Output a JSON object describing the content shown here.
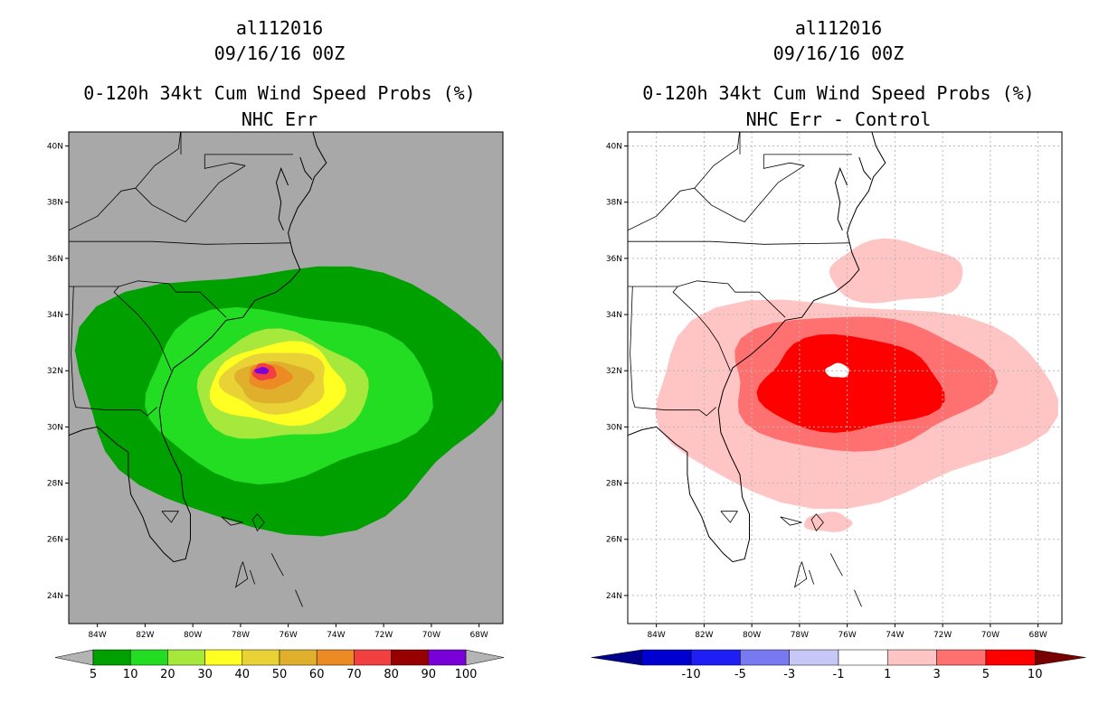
{
  "chart_data": [
    {
      "type": "heatmap",
      "storm_id": "al112016",
      "datetime": "09/16/16 00Z",
      "title": "0-120h 34kt Cum Wind Speed Probs (%)",
      "subtitle": "NHC Err",
      "background": "#a8a8a8",
      "lat_ticks": [
        "40N",
        "38N",
        "36N",
        "34N",
        "32N",
        "30N",
        "28N",
        "26N",
        "24N"
      ],
      "lon_ticks": [
        "84W",
        "82W",
        "80W",
        "78W",
        "76W",
        "74W",
        "72W",
        "70W",
        "68W"
      ],
      "grid": false,
      "colorbar": {
        "labels": [
          "5",
          "10",
          "20",
          "30",
          "40",
          "50",
          "60",
          "70",
          "80",
          "90",
          "100"
        ],
        "colors": [
          "#00a000",
          "#22dd22",
          "#a6e83c",
          "#ffff22",
          "#e8d236",
          "#e0b02c",
          "#ec8a24",
          "#f24040",
          "#960000",
          "#7a00d8"
        ],
        "end_color": "#b4b4b4"
      },
      "contours": [
        {
          "level": 5,
          "color": "#00a000",
          "center": [
            -76.1,
            31.2
          ],
          "rx_deg": 8.8,
          "ry_deg": 4.7
        },
        {
          "level": 10,
          "color": "#22dd22",
          "center": [
            -76.2,
            31.2
          ],
          "rx_deg": 6.0,
          "ry_deg": 3.0
        },
        {
          "level": 20,
          "color": "#a6e83c",
          "center": [
            -76.3,
            31.4
          ],
          "rx_deg": 3.6,
          "ry_deg": 1.9
        },
        {
          "level": 30,
          "color": "#ffff22",
          "center": [
            -76.4,
            31.5
          ],
          "rx_deg": 2.8,
          "ry_deg": 1.45
        },
        {
          "level": 40,
          "color": "#e8d236",
          "center": [
            -76.5,
            31.6
          ],
          "rx_deg": 2.2,
          "ry_deg": 1.1
        },
        {
          "level": 50,
          "color": "#e0b02c",
          "center": [
            -76.6,
            31.6
          ],
          "rx_deg": 1.6,
          "ry_deg": 0.75
        },
        {
          "level": 60,
          "color": "#ec8a24",
          "center": [
            -76.8,
            31.8
          ],
          "rx_deg": 0.9,
          "ry_deg": 0.45
        },
        {
          "level": 70,
          "color": "#f24040",
          "center": [
            -77.0,
            31.95
          ],
          "rx_deg": 0.5,
          "ry_deg": 0.3
        },
        {
          "level": 90,
          "color": "#7a00d8",
          "center": [
            -77.1,
            32.0
          ],
          "rx_deg": 0.3,
          "ry_deg": 0.12
        }
      ]
    },
    {
      "type": "heatmap",
      "storm_id": "al112016",
      "datetime": "09/16/16 00Z",
      "title": "0-120h 34kt Cum Wind Speed Probs (%)",
      "subtitle": "NHC Err - Control",
      "background": "#ffffff",
      "lat_ticks": [
        "40N",
        "38N",
        "36N",
        "34N",
        "32N",
        "30N",
        "28N",
        "26N",
        "24N"
      ],
      "lon_ticks": [
        "84W",
        "82W",
        "80W",
        "78W",
        "76W",
        "74W",
        "72W",
        "70W",
        "68W"
      ],
      "grid": true,
      "colorbar": {
        "labels": [
          "-10",
          "-5",
          "-3",
          "-1",
          "1",
          "3",
          "5",
          "10"
        ],
        "colors": [
          "#0000d0",
          "#1e1ef5",
          "#7878f0",
          "#c8c8f8",
          "#ffffff",
          "#ffc4c4",
          "#ff7070",
          "#ff0000"
        ],
        "left_end_color": "#00008c",
        "right_end_color": "#780000"
      },
      "contours": [
        {
          "level": 1,
          "color": "#ffc4c4",
          "center": [
            -76.0,
            31.0
          ],
          "rx_deg": 8.4,
          "ry_deg": 3.6
        },
        {
          "level": 1,
          "color": "#ffc4c4",
          "center": [
            -74.0,
            35.5
          ],
          "rx_deg": 2.8,
          "ry_deg": 1.1
        },
        {
          "level": 1,
          "color": "#ffc4c4",
          "center": [
            -76.8,
            26.6
          ],
          "rx_deg": 1.0,
          "ry_deg": 0.35
        },
        {
          "level": 1,
          "color": "#ffc4c4",
          "center": [
            -70.2,
            30.7
          ],
          "rx_deg": 0.35,
          "ry_deg": 0.35
        },
        {
          "level": 1,
          "color": "#ffc4c4",
          "center": [
            -73.5,
            33.2
          ],
          "rx_deg": 0.4,
          "ry_deg": 0.3
        },
        {
          "level": 3,
          "color": "#ff7070",
          "center": [
            -75.7,
            31.6
          ],
          "rx_deg": 5.4,
          "ry_deg": 2.4
        },
        {
          "level": 5,
          "color": "#ff0000",
          "center": [
            -75.9,
            31.5
          ],
          "rx_deg": 3.8,
          "ry_deg": 1.7
        },
        {
          "level": -1,
          "color": "#ffffff",
          "center": [
            -76.4,
            32.0
          ],
          "rx_deg": 0.5,
          "ry_deg": 0.25
        }
      ]
    }
  ]
}
